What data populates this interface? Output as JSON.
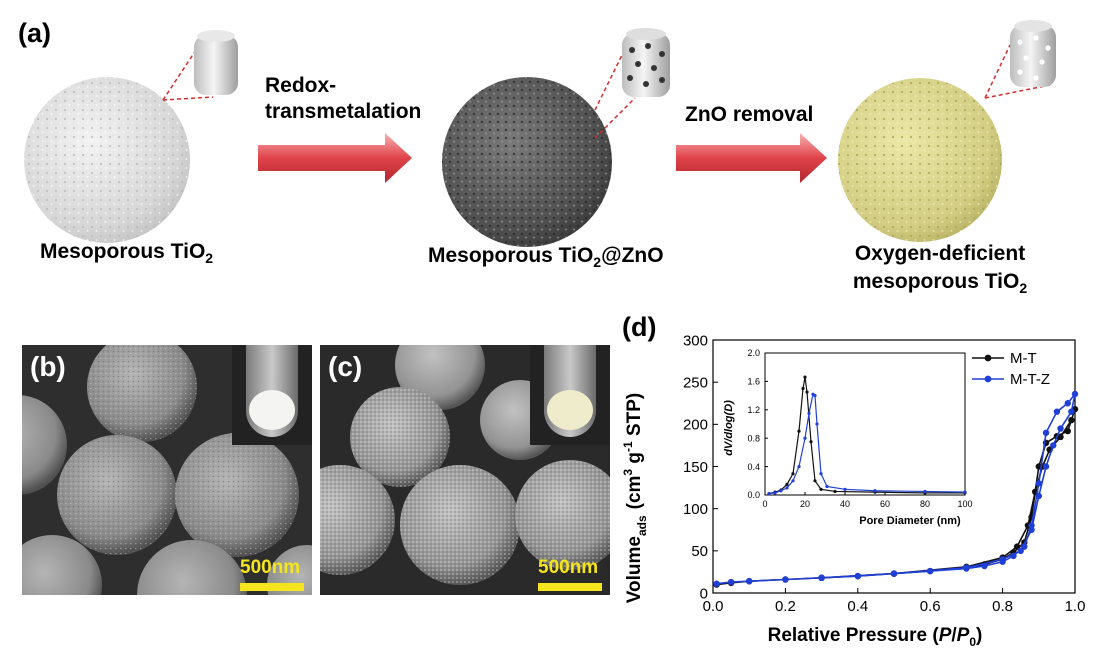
{
  "panel_a": {
    "letter": "(a)",
    "step1_label": "Redox-",
    "step1_label2": "transmetalation",
    "step2_label": "ZnO removal",
    "captions": {
      "left_pre": "Mesoporous TiO",
      "left_sub": "2",
      "middle_pre": "Mesoporous TiO",
      "middle_sub": "2",
      "middle_post": "@ZnO",
      "right_line1": "Oxygen-deficient",
      "right_line2_pre": "mesoporous TiO",
      "right_line2_sub": "2"
    },
    "colors": {
      "sphere_left": "#d9d9d9",
      "sphere_middle": "#5a5a5a",
      "sphere_right": "#d6d38a",
      "arrow": "#e0434a"
    }
  },
  "panel_b": {
    "letter": "(b)",
    "scalebar": "500nm"
  },
  "panel_c": {
    "letter": "(c)",
    "scalebar": "500nm"
  },
  "panel_d": {
    "letter": "(d)",
    "chart_data": [
      {
        "type": "line",
        "xlabel_pre": "Relative Pressure (",
        "xlabel_p": "P",
        "xlabel_slash": "/",
        "xlabel_p0": "P",
        "xlabel_sub": "0",
        "xlabel_post": ")",
        "ylabel": "Volume",
        "ylabel_sub": "ads",
        "ylabel_unit": "(cm",
        "ylabel_unit_sup": "3",
        "ylabel_unit_g": " g",
        "ylabel_unit_sup2": "-1",
        "ylabel_unit_end": " STP)",
        "xlim": [
          0.0,
          1.0
        ],
        "ylim": [
          0,
          300
        ],
        "xticks": [
          "0.0",
          "0.2",
          "0.4",
          "0.6",
          "0.8",
          "1.0"
        ],
        "yticks": [
          "0",
          "50",
          "100",
          "150",
          "200",
          "250",
          "300"
        ],
        "legend": "top-right",
        "series": [
          {
            "name": "M-T",
            "color": "#111111",
            "x": [
              0.01,
              0.05,
              0.1,
              0.2,
              0.3,
              0.4,
              0.5,
              0.6,
              0.7,
              0.75,
              0.8,
              0.83,
              0.86,
              0.88,
              0.9,
              0.92,
              0.95,
              0.98,
              1.0,
              0.99,
              0.96,
              0.93,
              0.91,
              0.89,
              0.87,
              0.84,
              0.8,
              0.7,
              0.5,
              0.3
            ],
            "y": [
              10,
              12,
              14,
              16,
              18,
              20,
              23,
              26,
              30,
              34,
              40,
              48,
              60,
              90,
              150,
              178,
              186,
              192,
              218,
              205,
              185,
              170,
              150,
              120,
              80,
              55,
              42,
              31,
              23,
              18
            ]
          },
          {
            "name": "M-T-Z",
            "color": "#1f3fd6",
            "x": [
              0.01,
              0.05,
              0.1,
              0.2,
              0.3,
              0.4,
              0.5,
              0.6,
              0.7,
              0.75,
              0.8,
              0.83,
              0.86,
              0.88,
              0.9,
              0.92,
              0.95,
              0.98,
              1.0,
              0.99,
              0.96,
              0.94,
              0.92,
              0.9,
              0.88,
              0.85,
              0.8,
              0.7,
              0.5,
              0.3
            ],
            "y": [
              11,
              13,
              14,
              16,
              18,
              20,
              23,
              26,
              29,
              32,
              37,
              44,
              55,
              80,
              130,
              190,
              215,
              225,
              236,
              215,
              195,
              175,
              150,
              115,
              75,
              50,
              40,
              30,
              23,
              18
            ]
          }
        ]
      },
      {
        "type": "line",
        "xlabel": "Pore Diameter (nm)",
        "ylabel": "dV/dlog(D)",
        "xlim": [
          0,
          100
        ],
        "ylim": [
          0,
          2.0
        ],
        "xticks": [
          "0",
          "20",
          "40",
          "60",
          "80",
          "100"
        ],
        "yticks": [
          "0.0",
          "0.4",
          "0.8",
          "1.2",
          "1.6",
          "2.0"
        ],
        "series": [
          {
            "name": "M-T",
            "color": "#111111",
            "x": [
              2,
              5,
              8,
              11,
              14,
              17,
              19,
              20,
              21,
              23,
              25,
              28,
              35,
              55,
              80,
              100
            ],
            "y": [
              0.02,
              0.04,
              0.07,
              0.15,
              0.3,
              0.9,
              1.5,
              1.66,
              1.45,
              0.75,
              0.2,
              0.08,
              0.05,
              0.04,
              0.03,
              0.03
            ]
          },
          {
            "name": "M-T-Z",
            "color": "#1f3fd6",
            "x": [
              2,
              5,
              8,
              11,
              14,
              17,
              20,
              22,
              24,
              25,
              26,
              28,
              31,
              40,
              55,
              80,
              100
            ],
            "y": [
              0.02,
              0.03,
              0.06,
              0.1,
              0.2,
              0.4,
              0.8,
              1.15,
              1.42,
              1.4,
              1.0,
              0.3,
              0.12,
              0.08,
              0.06,
              0.05,
              0.04
            ]
          }
        ]
      }
    ]
  }
}
